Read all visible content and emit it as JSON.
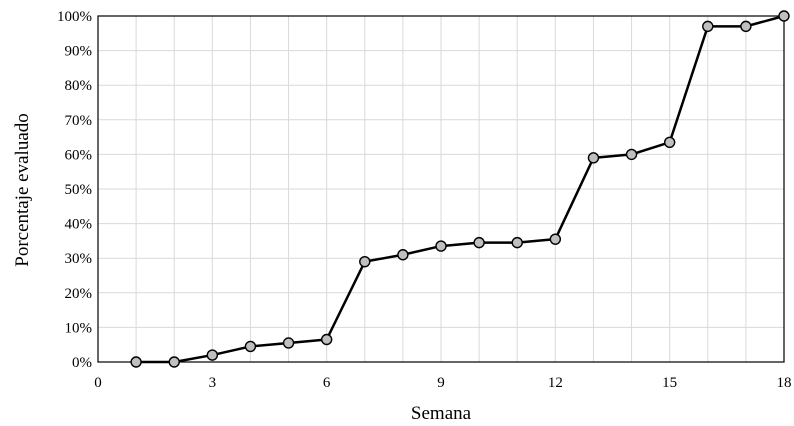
{
  "chart_data": {
    "type": "line",
    "xlabel": "Semana",
    "ylabel": "Porcentaje evaluado",
    "xlim": [
      0,
      18
    ],
    "ylim": [
      0,
      100
    ],
    "x_ticks": [
      0,
      3,
      6,
      9,
      12,
      15,
      18
    ],
    "y_ticks": [
      0,
      10,
      20,
      30,
      40,
      50,
      60,
      70,
      80,
      90,
      100
    ],
    "y_tick_suffix": "%",
    "grid": true,
    "series": [
      {
        "x": [
          1,
          2,
          3,
          4,
          5,
          6,
          7,
          8,
          9,
          10,
          11,
          12,
          13,
          14,
          15,
          16,
          17,
          18
        ],
        "values": [
          0,
          0,
          2,
          4.5,
          5.5,
          6.5,
          29,
          31,
          33.5,
          34.5,
          34.5,
          35.5,
          59,
          60,
          63.5,
          97,
          97,
          100
        ],
        "color": "#000000",
        "marker_fill": "#bfbfbf"
      }
    ]
  }
}
